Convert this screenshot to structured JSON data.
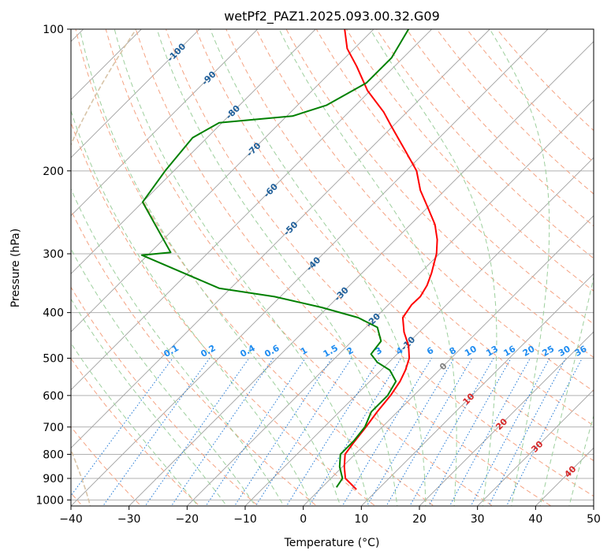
{
  "chart_data": {
    "type": "line",
    "title": "wetPf2_PAZ1.2025.093.00.32.G09",
    "xlabel": "Temperature (°C)",
    "ylabel": "Pressure (hPa)",
    "xlim": [
      -40,
      50
    ],
    "ylim": [
      1030,
      100
    ],
    "yscale": "log",
    "skew": "skew-T log-p",
    "grid": true,
    "x_ticks": [
      "−40",
      "−30",
      "−20",
      "−10",
      "0",
      "10",
      "20",
      "30",
      "40",
      "50"
    ],
    "x_tick_values": [
      -40,
      -30,
      -20,
      -10,
      0,
      10,
      20,
      30,
      40,
      50
    ],
    "y_ticks": [
      "100",
      "200",
      "300",
      "400",
      "500",
      "600",
      "700",
      "800",
      "900",
      "1000"
    ],
    "y_tick_values": [
      100,
      200,
      300,
      400,
      500,
      600,
      700,
      800,
      900,
      1000
    ],
    "series": [
      {
        "kind": "temperature",
        "color": "#ff0000",
        "points": [
          [
            950,
            6.3
          ],
          [
            900,
            2.5
          ],
          [
            850,
            0.3
          ],
          [
            800,
            -1.7
          ],
          [
            750,
            -2.3
          ],
          [
            700,
            -2.8
          ],
          [
            650,
            -3.5
          ],
          [
            600,
            -4.0
          ],
          [
            560,
            -4.8
          ],
          [
            530,
            -5.8
          ],
          [
            500,
            -7.2
          ],
          [
            470,
            -9.5
          ],
          [
            440,
            -12.6
          ],
          [
            410,
            -15.3
          ],
          [
            385,
            -16.0
          ],
          [
            370,
            -15.9
          ],
          [
            350,
            -16.7
          ],
          [
            330,
            -18.0
          ],
          [
            300,
            -20.5
          ],
          [
            280,
            -22.8
          ],
          [
            260,
            -25.8
          ],
          [
            240,
            -29.8
          ],
          [
            220,
            -34.2
          ],
          [
            200,
            -38.2
          ],
          [
            180,
            -44.0
          ],
          [
            160,
            -50.5
          ],
          [
            150,
            -54.0
          ],
          [
            135,
            -60.5
          ],
          [
            120,
            -66.5
          ],
          [
            110,
            -71.2
          ],
          [
            100,
            -75.0
          ]
        ]
      },
      {
        "kind": "dewpoint",
        "color": "#008000",
        "points": [
          [
            940,
            2.5
          ],
          [
            900,
            2.0
          ],
          [
            850,
            -0.5
          ],
          [
            800,
            -2.5
          ],
          [
            750,
            -2.5
          ],
          [
            700,
            -3.0
          ],
          [
            650,
            -4.5
          ],
          [
            600,
            -4.5
          ],
          [
            560,
            -5.5
          ],
          [
            530,
            -8.5
          ],
          [
            510,
            -12.0
          ],
          [
            490,
            -14.5
          ],
          [
            460,
            -15.0
          ],
          [
            430,
            -18.0
          ],
          [
            410,
            -23.0
          ],
          [
            390,
            -31.0
          ],
          [
            370,
            -41.0
          ],
          [
            355,
            -52.0
          ],
          [
            302,
            -71.0
          ],
          [
            298,
            -66.5
          ],
          [
            233,
            -80.0
          ],
          [
            200,
            -81.5
          ],
          [
            170,
            -82.5
          ],
          [
            158,
            -80.5
          ],
          [
            153,
            -69.0
          ],
          [
            145,
            -65.0
          ],
          [
            130,
            -62.0
          ],
          [
            115,
            -62.0
          ],
          [
            100,
            -64.0
          ]
        ]
      }
    ],
    "dry_adiabats_C": [
      -100,
      -90,
      -80,
      -70,
      -60,
      -50,
      -40,
      -30,
      -20,
      -10,
      0,
      10,
      20,
      30,
      40,
      50,
      60,
      70,
      80,
      90,
      100,
      110,
      120,
      130,
      140,
      150,
      160
    ],
    "moist_adiabats_C": [
      -20,
      -15,
      -10,
      -5,
      0,
      5,
      10,
      15,
      20,
      25,
      30,
      35,
      40,
      45
    ],
    "mixing_ratio_labels": [
      "0.1",
      "0.2",
      "0.4",
      "0.6",
      "1",
      "1.5",
      "2",
      "3",
      "4",
      "6",
      "8",
      "10",
      "13",
      "16",
      "20",
      "25",
      "30",
      "36"
    ],
    "mixing_ratio_values": [
      0.1,
      0.2,
      0.4,
      0.6,
      1,
      1.5,
      2,
      3,
      4,
      6,
      8,
      10,
      13,
      16,
      20,
      25,
      30,
      36
    ],
    "isotherm_labels_negative": [
      {
        "t": -100,
        "text": "-100"
      },
      {
        "t": -90,
        "text": "-90"
      },
      {
        "t": -80,
        "text": "-80"
      },
      {
        "t": -70,
        "text": "-70"
      },
      {
        "t": -60,
        "text": "-60"
      },
      {
        "t": -50,
        "text": "-50"
      },
      {
        "t": -40,
        "text": "-40"
      },
      {
        "t": -30,
        "text": "-30"
      },
      {
        "t": -20,
        "text": "-20"
      },
      {
        "t": -10,
        "text": "-10"
      }
    ],
    "isotherm_labels_positive": [
      {
        "t": 0,
        "text": "0"
      },
      {
        "t": 10,
        "text": "10"
      },
      {
        "t": 20,
        "text": "20"
      },
      {
        "t": 30,
        "text": "30"
      },
      {
        "t": 40,
        "text": "40"
      }
    ],
    "colors": {
      "isotherm": "#a0a0a0",
      "dry_adiabat": "#f5a383",
      "moist_adiabat": "#9dcf9d",
      "mixing_ratio": "#1f77d4",
      "isotherm_label_negative": "#1f5f9a",
      "isotherm_label_positive": "#d62728",
      "isotherm_label_zero": "#7f7f7f",
      "mixing_label": "#1f8cf0",
      "frost_curve": "#d8c4a8"
    }
  }
}
